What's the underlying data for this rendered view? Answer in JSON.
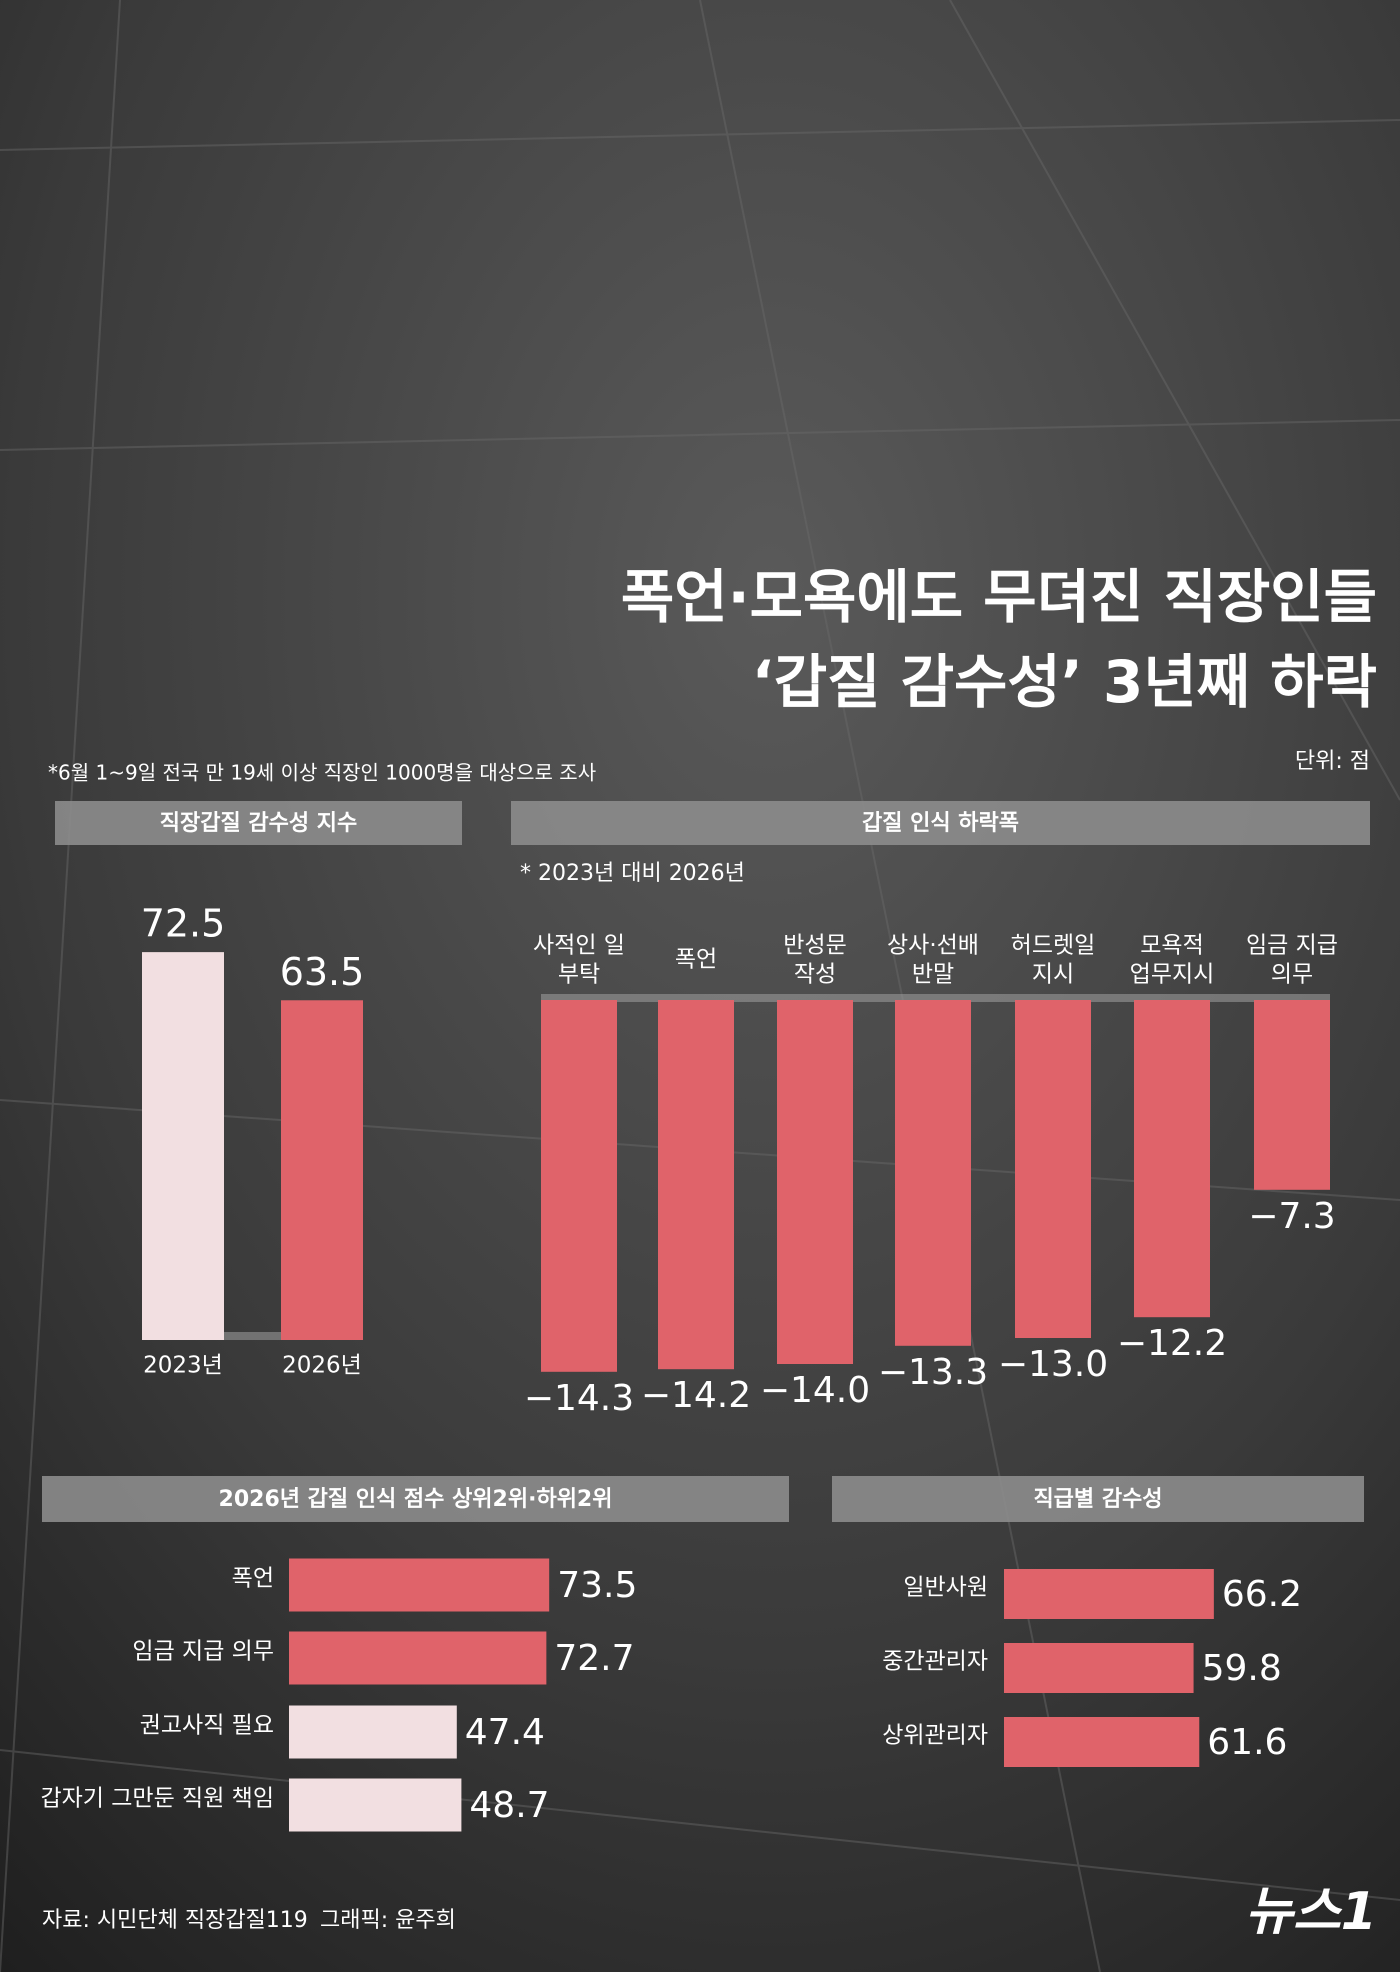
{
  "title_lines": [
    "폭언·모욕에도 무뎌진 직장인들",
    "‘갑질 감수성’ 3년째 하락"
  ],
  "note": "*6월 1~9일 전국 만 19세 이상 직장인 1000명을 대상으로 조사",
  "unit": "단위: 점",
  "source": "자료: 시민단체 직장갑질119",
  "graphic": "그래픽: 윤주희",
  "logo": "뉴스1",
  "chart_data": [
    {
      "type": "bar",
      "orientation": "vertical",
      "title": "직장갑질 감수성 지수",
      "categories": [
        "2023년",
        "2026년"
      ],
      "values": [
        72.5,
        63.5
      ],
      "colors": [
        "#f2dfe1",
        "#e0636a"
      ]
    },
    {
      "type": "bar",
      "orientation": "vertical",
      "title": "갑질 인식 하락폭",
      "subtitle": "* 2023년 대비 2026년",
      "categories": [
        [
          "사적인 일",
          "부탁"
        ],
        [
          "폭언"
        ],
        [
          "반성문",
          "작성"
        ],
        [
          "상사·선배",
          "반말"
        ],
        [
          "허드렛일",
          "지시"
        ],
        [
          "모욕적",
          "업무지시"
        ],
        [
          "임금 지급",
          "의무"
        ]
      ],
      "values": [
        -14.3,
        -14.2,
        -14.0,
        -13.3,
        -13.0,
        -12.2,
        -7.3
      ],
      "value_labels": [
        "−14.3",
        "−14.2",
        "−14.0",
        "−13.3",
        "−13.0",
        "−12.2",
        "−7.3"
      ],
      "color": "#e0636a"
    },
    {
      "type": "bar",
      "orientation": "horizontal",
      "title": "2026년 갑질 인식 점수 상위2위·하위2위",
      "categories": [
        "폭언",
        "임금 지급 의무",
        "권고사직 필요",
        "갑자기 그만둔 직원 책임"
      ],
      "values": [
        73.5,
        72.7,
        47.4,
        48.7
      ],
      "colors": [
        "#e0636a",
        "#e0636a",
        "#f2dfe1",
        "#f2dfe1"
      ]
    },
    {
      "type": "bar",
      "orientation": "horizontal",
      "title": "직급별 감수성",
      "categories": [
        "일반사원",
        "중간관리자",
        "상위관리자"
      ],
      "values": [
        66.2,
        59.8,
        61.6
      ],
      "color": "#e0636a"
    }
  ]
}
